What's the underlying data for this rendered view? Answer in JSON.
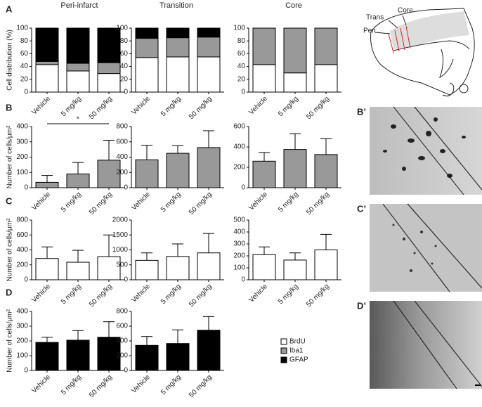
{
  "column_titles": [
    "Peri-infarct",
    "Transition",
    "Core"
  ],
  "diagram": {
    "labels": [
      "Trans",
      "Core",
      "Peri"
    ]
  },
  "images": [
    {
      "label": "B’"
    },
    {
      "label": "C’"
    },
    {
      "label": "D’"
    }
  ],
  "chart_data": [
    {
      "type": "bar",
      "panel": "A",
      "y_label": "Cell distribution (%)",
      "categories": [
        "Vehicle",
        "5 mg/kg",
        "50 mg/kg"
      ],
      "series": [
        {
          "name": "BrdU",
          "color": "#ffffff",
          "values": [
            43,
            33,
            29
          ]
        },
        {
          "name": "Iba1",
          "color": "#999999",
          "values": [
            5,
            12,
            17
          ]
        },
        {
          "name": "GFAP",
          "color": "#000000",
          "values": [
            52,
            55,
            54
          ]
        }
      ],
      "ylim": [
        0,
        100
      ],
      "yticks": [
        0,
        20,
        40,
        60,
        80,
        100
      ]
    },
    {
      "type": "bar",
      "categories": [
        "Vehicle",
        "5 mg/kg",
        "50 mg/kg"
      ],
      "series": [
        {
          "name": "BrdU",
          "color": "#ffffff",
          "values": [
            54,
            55,
            55
          ]
        },
        {
          "name": "Iba1",
          "color": "#999999",
          "values": [
            30,
            30,
            31
          ]
        },
        {
          "name": "GFAP",
          "color": "#000000",
          "values": [
            16,
            15,
            14
          ]
        }
      ],
      "ylim": [
        0,
        100
      ],
      "yticks": [
        0,
        20,
        40,
        60,
        80,
        100
      ]
    },
    {
      "type": "bar",
      "categories": [
        "Vehicle",
        "5 mg/kg",
        "50 mg/kg"
      ],
      "series": [
        {
          "name": "BrdU",
          "color": "#ffffff",
          "values": [
            43,
            30,
            43
          ]
        },
        {
          "name": "Iba1",
          "color": "#999999",
          "values": [
            57,
            70,
            57
          ]
        },
        {
          "name": "GFAP",
          "color": "#000000",
          "values": [
            0,
            0,
            0
          ]
        }
      ],
      "ylim": [
        0,
        100
      ],
      "yticks": [
        0,
        20,
        40,
        60,
        80,
        100
      ]
    },
    {
      "type": "bar",
      "panel": "B",
      "y_label": "Number of cells/μm²",
      "categories": [
        "Vehicle",
        "5 mg/kg",
        "50 mg/kg"
      ],
      "values": [
        35,
        90,
        180
      ],
      "errors": [
        45,
        75,
        130
      ],
      "color": "#999999",
      "significance": "*",
      "ylim": [
        0,
        400
      ],
      "yticks": [
        0,
        100,
        200,
        300,
        400
      ]
    },
    {
      "type": "bar",
      "categories": [
        "Vehicle",
        "5 mg/kg",
        "50 mg/kg"
      ],
      "values": [
        365,
        450,
        525
      ],
      "errors": [
        190,
        100,
        220
      ],
      "color": "#999999",
      "ylim": [
        0,
        800
      ],
      "yticks": [
        0,
        200,
        400,
        600,
        800
      ]
    },
    {
      "type": "bar",
      "categories": [
        "Vehicle",
        "5 mg/kg",
        "50 mg/kg"
      ],
      "values": [
        260,
        375,
        325
      ],
      "errors": [
        85,
        155,
        155
      ],
      "color": "#999999",
      "ylim": [
        0,
        600
      ],
      "yticks": [
        0,
        200,
        400,
        600
      ]
    },
    {
      "type": "bar",
      "panel": "C",
      "y_label": "Number of cells/μm²",
      "categories": [
        "Vehicle",
        "5 mg/kg",
        "50 mg/kg"
      ],
      "values": [
        285,
        235,
        310
      ],
      "errors": [
        155,
        160,
        290
      ],
      "color": "#ffffff",
      "ylim": [
        0,
        800
      ],
      "yticks": [
        0,
        200,
        400,
        600,
        800
      ]
    },
    {
      "type": "bar",
      "categories": [
        "Vehicle",
        "5 mg/kg",
        "50 mg/kg"
      ],
      "values": [
        650,
        780,
        900
      ],
      "errors": [
        250,
        420,
        650
      ],
      "color": "#ffffff",
      "ylim": [
        0,
        2000
      ],
      "yticks": [
        0,
        500,
        1000,
        1500,
        2000
      ]
    },
    {
      "type": "bar",
      "categories": [
        "Vehicle",
        "5 mg/kg",
        "50 mg/kg"
      ],
      "values": [
        210,
        165,
        250
      ],
      "errors": [
        65,
        60,
        130
      ],
      "color": "#ffffff",
      "ylim": [
        0,
        500
      ],
      "yticks": [
        0,
        100,
        200,
        300,
        400,
        500
      ]
    },
    {
      "type": "bar",
      "panel": "D",
      "y_label": "Number of cells/μm²",
      "categories": [
        "Vehicle",
        "5 mg/kg",
        "50 mg/kg"
      ],
      "values": [
        190,
        205,
        225
      ],
      "errors": [
        35,
        65,
        105
      ],
      "color": "#000000",
      "ylim": [
        0,
        400
      ],
      "yticks": [
        0,
        100,
        200,
        300,
        400
      ]
    },
    {
      "type": "bar",
      "categories": [
        "Vehicle",
        "5 mg/kg",
        "50 mg/kg"
      ],
      "values": [
        340,
        365,
        545
      ],
      "errors": [
        120,
        185,
        185
      ],
      "color": "#000000",
      "ylim": [
        0,
        800
      ],
      "yticks": [
        0,
        200,
        400,
        600,
        800
      ]
    }
  ]
}
